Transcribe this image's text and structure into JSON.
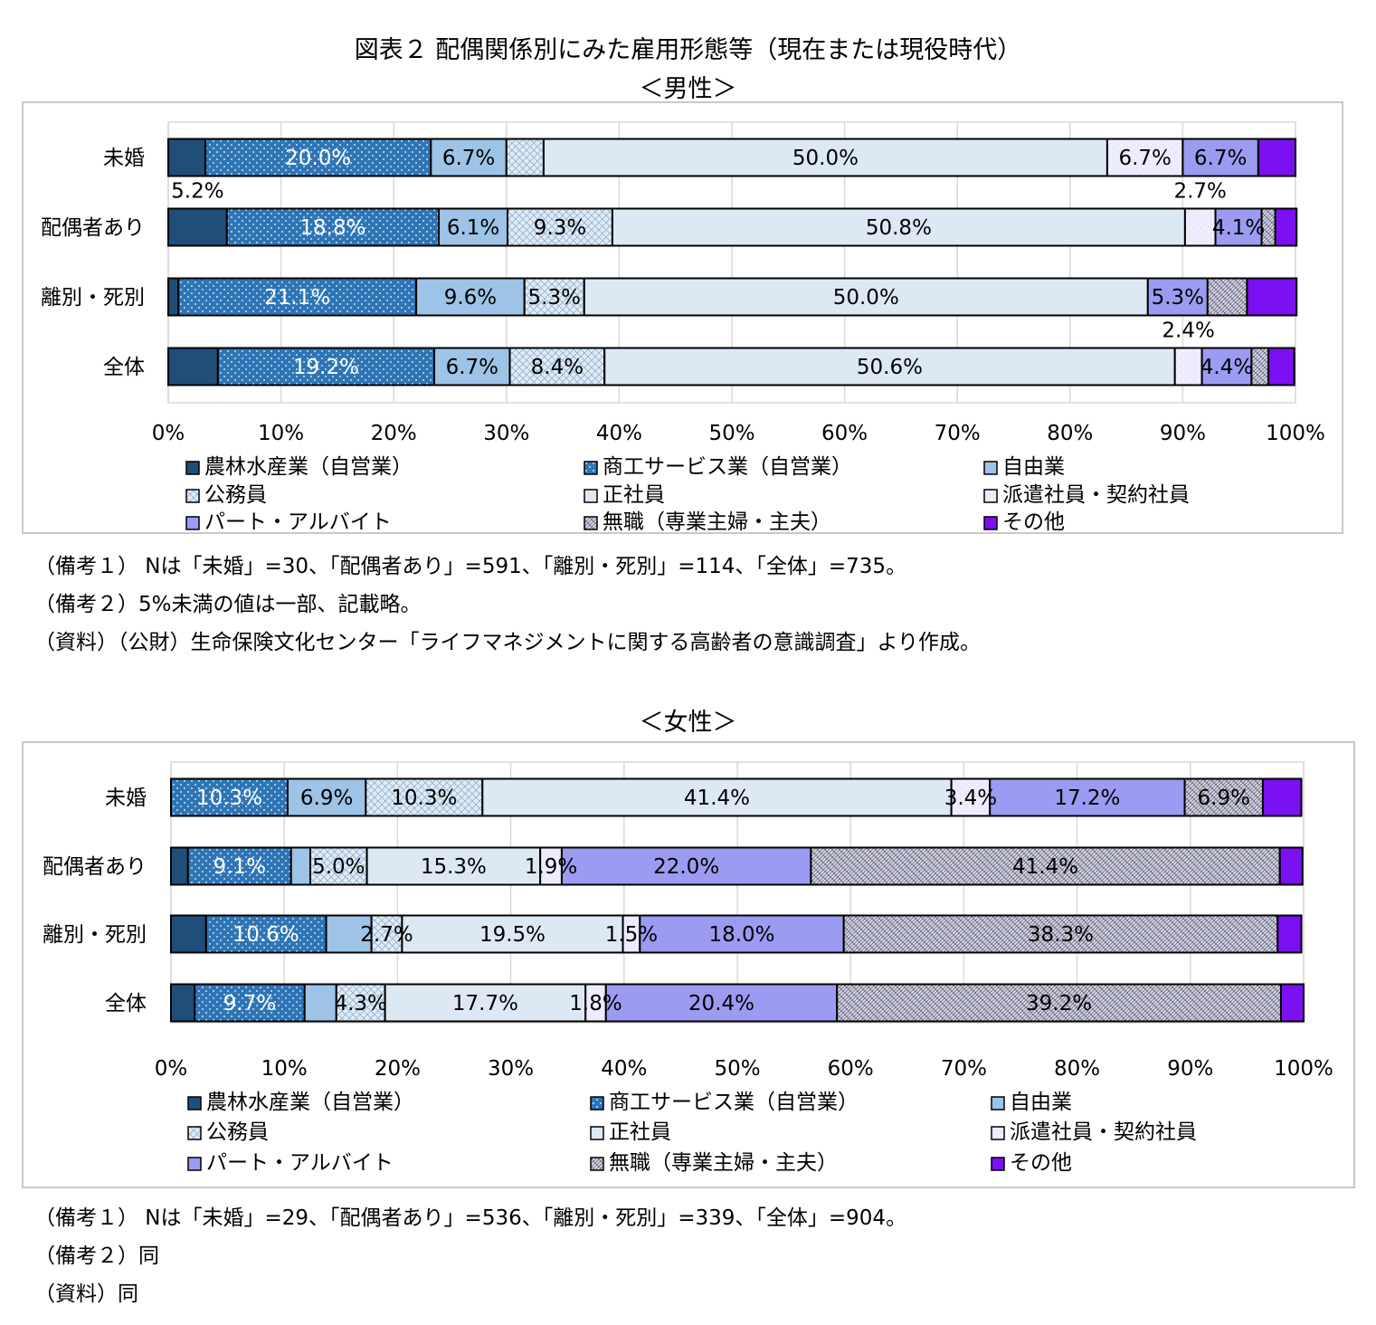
{
  "title": "図表２ 配偶関係別にみた雇用形態等（現在または現役時代）",
  "legend": [
    {
      "label": "農林水産業（自営業）",
      "fill": "#1f4e79",
      "pattern": "solid"
    },
    {
      "label": "商工サービス業（自営業）",
      "fill": "#2e75b6",
      "pattern": "dots"
    },
    {
      "label": "自由業",
      "fill": "#9dc3e6",
      "pattern": "solid"
    },
    {
      "label": "公務員",
      "fill": "#deebf7",
      "pattern": "grid"
    },
    {
      "label": "正社員",
      "fill": "#dde8f5",
      "pattern": "solid"
    },
    {
      "label": "派遣社員・契約社員",
      "fill": "#eceaff",
      "pattern": "dots-light"
    },
    {
      "label": "パート・アルバイト",
      "fill": "#9b9bf2",
      "pattern": "solid"
    },
    {
      "label": "無職（専業主婦・主夫）",
      "fill": "#d6d6e6",
      "pattern": "dense"
    },
    {
      "label": "その他",
      "fill": "#7b10f0",
      "pattern": "solid"
    }
  ],
  "male": {
    "subtitle": "＜男性＞",
    "notes": [
      "（備考１） Nは「未婚」=30、「配偶者あり」=591、「離別・死別」=114、「全体」=735。",
      "（備考２）5%未満の値は一部、記載略。",
      "（資料）（公財）生命保険文化センター「ライフマネジメントに関する高齢者の意識調査」より作成。"
    ]
  },
  "female": {
    "subtitle": "＜女性＞",
    "notes": [
      "（備考１） Nは「未婚」=29、「配偶者あり」=536、「離別・死別」=339、「全体」=904。",
      "（備考２）同",
      "（資料）同"
    ]
  },
  "chart_data": [
    {
      "type": "bar",
      "stacked": true,
      "orientation": "horizontal",
      "title": "＜男性＞",
      "categories": [
        "未婚",
        "配偶者あり",
        "離別・死別",
        "全体"
      ],
      "series": [
        {
          "name": "農林水産業（自営業）",
          "values": [
            3.3,
            5.2,
            0.9,
            4.4
          ]
        },
        {
          "name": "商工サービス業（自営業）",
          "values": [
            20.0,
            18.8,
            21.1,
            19.2
          ]
        },
        {
          "name": "自由業",
          "values": [
            6.7,
            6.1,
            9.6,
            6.7
          ]
        },
        {
          "name": "公務員",
          "values": [
            3.3,
            9.3,
            5.3,
            8.4
          ]
        },
        {
          "name": "正社員",
          "values": [
            50.0,
            50.8,
            50.0,
            50.6
          ]
        },
        {
          "name": "派遣社員・契約社員",
          "values": [
            6.7,
            2.7,
            0.0,
            2.4
          ]
        },
        {
          "name": "パート・アルバイト",
          "values": [
            6.7,
            4.1,
            5.3,
            4.4
          ]
        },
        {
          "name": "無職（専業主婦・主夫）",
          "values": [
            0.0,
            1.2,
            3.5,
            1.5
          ]
        },
        {
          "name": "その他",
          "values": [
            3.3,
            1.9,
            4.4,
            2.3
          ]
        }
      ],
      "labels": [
        [
          "",
          "20.0%",
          "6.7%",
          "",
          "50.0%",
          "6.7%",
          "6.7%",
          "",
          ""
        ],
        [
          "",
          "18.8%",
          "6.1%",
          "9.3%",
          "50.8%",
          "",
          "4.1%",
          "",
          ""
        ],
        [
          "",
          "21.1%",
          "9.6%",
          "5.3%",
          "50.0%",
          "",
          "5.3%",
          "",
          ""
        ],
        [
          "",
          "19.2%",
          "6.7%",
          "8.4%",
          "50.6%",
          "",
          "4.4%",
          "",
          ""
        ]
      ],
      "outside_labels": [
        {
          "text": "5.2%",
          "category": 1,
          "series": 0,
          "position": "above"
        },
        {
          "text": "2.7%",
          "category": 1,
          "series": 5,
          "position": "above"
        },
        {
          "text": "2.4%",
          "category": 3,
          "series": 5,
          "position": "above"
        }
      ],
      "xlim": [
        0,
        100
      ],
      "xticks": [
        "0%",
        "10%",
        "20%",
        "30%",
        "40%",
        "50%",
        "60%",
        "70%",
        "80%",
        "90%",
        "100%"
      ],
      "grid": true,
      "legend_position": "bottom"
    },
    {
      "type": "bar",
      "stacked": true,
      "orientation": "horizontal",
      "title": "＜女性＞",
      "categories": [
        "未婚",
        "配偶者あり",
        "離別・死別",
        "全体"
      ],
      "series": [
        {
          "name": "農林水産業（自営業）",
          "values": [
            0.0,
            1.5,
            3.1,
            2.1
          ]
        },
        {
          "name": "商工サービス業（自営業）",
          "values": [
            10.3,
            9.1,
            10.6,
            9.7
          ]
        },
        {
          "name": "自由業",
          "values": [
            6.9,
            1.7,
            4.0,
            2.8
          ]
        },
        {
          "name": "公務員",
          "values": [
            10.3,
            5.0,
            2.7,
            4.3
          ]
        },
        {
          "name": "正社員",
          "values": [
            41.4,
            15.3,
            19.5,
            17.7
          ]
        },
        {
          "name": "派遣社員・契約社員",
          "values": [
            3.4,
            1.9,
            1.5,
            1.8
          ]
        },
        {
          "name": "パート・アルバイト",
          "values": [
            17.2,
            22.0,
            18.0,
            20.4
          ]
        },
        {
          "name": "無職（専業主婦・主夫）",
          "values": [
            6.9,
            41.4,
            38.3,
            39.2
          ]
        },
        {
          "name": "その他",
          "values": [
            3.4,
            2.0,
            2.1,
            2.0
          ]
        }
      ],
      "labels": [
        [
          "",
          "10.3%",
          "6.9%",
          "10.3%",
          "41.4%",
          "3.4%",
          "17.2%",
          "6.9%",
          ""
        ],
        [
          "",
          "9.1%",
          "",
          "5.0%",
          "15.3%",
          "1.9%",
          "22.0%",
          "41.4%",
          ""
        ],
        [
          "",
          "10.6%",
          "",
          "2.7%",
          "19.5%",
          "1.5%",
          "18.0%",
          "38.3%",
          ""
        ],
        [
          "",
          "9.7%",
          "",
          "4.3%",
          "17.7%",
          "1.8%",
          "20.4%",
          "39.2%",
          ""
        ]
      ],
      "outside_labels": [],
      "xlim": [
        0,
        100
      ],
      "xticks": [
        "0%",
        "10%",
        "20%",
        "30%",
        "40%",
        "50%",
        "60%",
        "70%",
        "80%",
        "90%",
        "100%"
      ],
      "grid": true,
      "legend_position": "bottom"
    }
  ]
}
